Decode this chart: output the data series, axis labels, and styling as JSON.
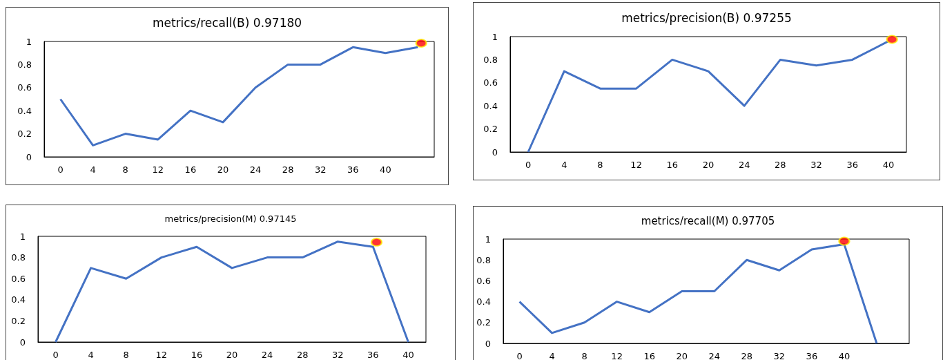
{
  "chart_data": [
    {
      "type": "line",
      "title": "metrics/recall(B) 0.97180",
      "xlim": [
        -2,
        46
      ],
      "xticks": [
        0,
        4,
        8,
        12,
        16,
        20,
        24,
        28,
        32,
        36,
        40
      ],
      "ylim": [
        0,
        1
      ],
      "yticks": [
        0,
        0.2,
        0.4,
        0.6,
        0.8,
        1
      ],
      "marker": "none",
      "series": [
        {
          "color": "#4472c4",
          "x": [
            0,
            4,
            8,
            12,
            16,
            20,
            24,
            28,
            32,
            36,
            40,
            44
          ],
          "values": [
            0.5,
            0.1,
            0.2,
            0.15,
            0.4,
            0.3,
            0.6,
            0.8,
            0.8,
            0.95,
            0.9,
            0.95
          ]
        },
        {
          "type": "scatter",
          "marker": "circle",
          "color": "#ff0000",
          "x": [
            44.4
          ],
          "values": [
            0.985
          ]
        }
      ]
    },
    {
      "type": "line",
      "title": "metrics/precision(B) 0.97255",
      "xlim": [
        -2,
        42
      ],
      "xticks": [
        0,
        4,
        8,
        12,
        16,
        20,
        24,
        28,
        32,
        36,
        40
      ],
      "ylim": [
        0,
        1
      ],
      "yticks": [
        0,
        0.2,
        0.4,
        0.6,
        0.8,
        1
      ],
      "marker": "none",
      "series": [
        {
          "color": "#4472c4",
          "x": [
            0,
            4,
            8,
            12,
            16,
            20,
            24,
            28,
            32,
            36,
            40
          ],
          "values": [
            0,
            0.7,
            0.55,
            0.55,
            0.8,
            0.7,
            0.4,
            0.8,
            0.75,
            0.8,
            0.96
          ]
        },
        {
          "type": "scatter",
          "marker": "circle",
          "color": "#ff0000",
          "x": [
            40.4
          ],
          "values": [
            0.976
          ]
        }
      ]
    },
    {
      "type": "line",
      "title": "metrics/precision(M) 0.97145",
      "xlim": [
        -2,
        42
      ],
      "xticks": [
        0,
        4,
        8,
        12,
        16,
        20,
        24,
        28,
        32,
        36,
        40
      ],
      "ylim": [
        0,
        1
      ],
      "yticks": [
        0,
        0.2,
        0.4,
        0.6,
        0.8,
        1
      ],
      "marker": "none",
      "series": [
        {
          "color": "#4472c4",
          "x": [
            0,
            4,
            8,
            12,
            16,
            20,
            24,
            28,
            32,
            36,
            40
          ],
          "values": [
            0,
            0.7,
            0.6,
            0.8,
            0.9,
            0.7,
            0.8,
            0.8,
            0.95,
            0.9,
            0
          ]
        },
        {
          "type": "scatter",
          "marker": "circle",
          "color": "#ff0000",
          "x": [
            36.4
          ],
          "values": [
            0.945
          ]
        }
      ]
    },
    {
      "type": "line",
      "title": "metrics/recall(M) 0.97705",
      "xlim": [
        -2,
        48
      ],
      "xticks": [
        0,
        4,
        8,
        12,
        16,
        20,
        24,
        28,
        32,
        36,
        40
      ],
      "ylim": [
        0,
        1
      ],
      "yticks": [
        0,
        0.2,
        0.4,
        0.6,
        0.8,
        1
      ],
      "marker": "none",
      "series": [
        {
          "color": "#4472c4",
          "x": [
            0,
            4,
            8,
            12,
            16,
            20,
            24,
            28,
            32,
            36,
            40,
            44
          ],
          "values": [
            0.4,
            0.1,
            0.2,
            0.4,
            0.3,
            0.5,
            0.5,
            0.8,
            0.7,
            0.9,
            0.95,
            0
          ]
        },
        {
          "type": "scatter",
          "marker": "circle",
          "color": "#ff0000",
          "x": [
            40
          ],
          "values": [
            0.98
          ]
        }
      ]
    }
  ]
}
